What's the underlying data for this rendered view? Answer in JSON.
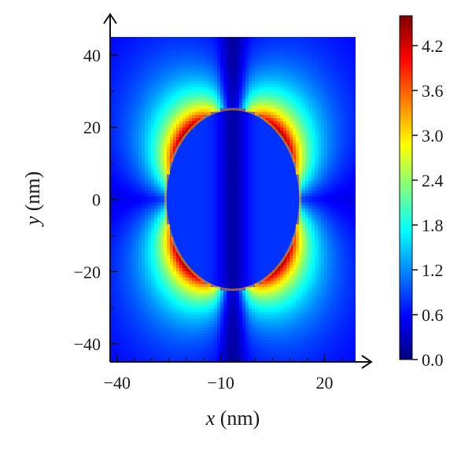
{
  "chart_data": {
    "type": "heatmap",
    "title": "",
    "xlabel_var": "x",
    "xlabel_unit": " (nm)",
    "ylabel_var": "y",
    "ylabel_unit": " (nm)",
    "x_range": [
      -42,
      29
    ],
    "y_range": [
      -45,
      45
    ],
    "x_ticks": [
      {
        "value": -40,
        "label": "−40"
      },
      {
        "value": -10,
        "label": "−10"
      },
      {
        "value": 20,
        "label": "20"
      }
    ],
    "y_ticks": [
      {
        "value": 40,
        "label": "40"
      },
      {
        "value": 20,
        "label": "20"
      },
      {
        "value": 0,
        "label": "0"
      },
      {
        "value": -20,
        "label": "−20"
      },
      {
        "value": -40,
        "label": "−40"
      }
    ],
    "ellipse": {
      "center_x": -6.5,
      "center_y": 0,
      "semi_axis_x": 19.5,
      "semi_axis_y": 25
    },
    "colorbar": {
      "range": [
        0.0,
        4.6
      ],
      "ticks": [
        {
          "value": 4.2,
          "label": "4.2"
        },
        {
          "value": 3.6,
          "label": "3.6"
        },
        {
          "value": 3.0,
          "label": "3.0"
        },
        {
          "value": 2.4,
          "label": "2.4"
        },
        {
          "value": 1.8,
          "label": "1.8"
        },
        {
          "value": 1.2,
          "label": "1.2"
        },
        {
          "value": 0.6,
          "label": "0.6"
        },
        {
          "value": 0.0,
          "label": "0.0"
        }
      ],
      "colormap": "jet",
      "position": "right"
    }
  }
}
